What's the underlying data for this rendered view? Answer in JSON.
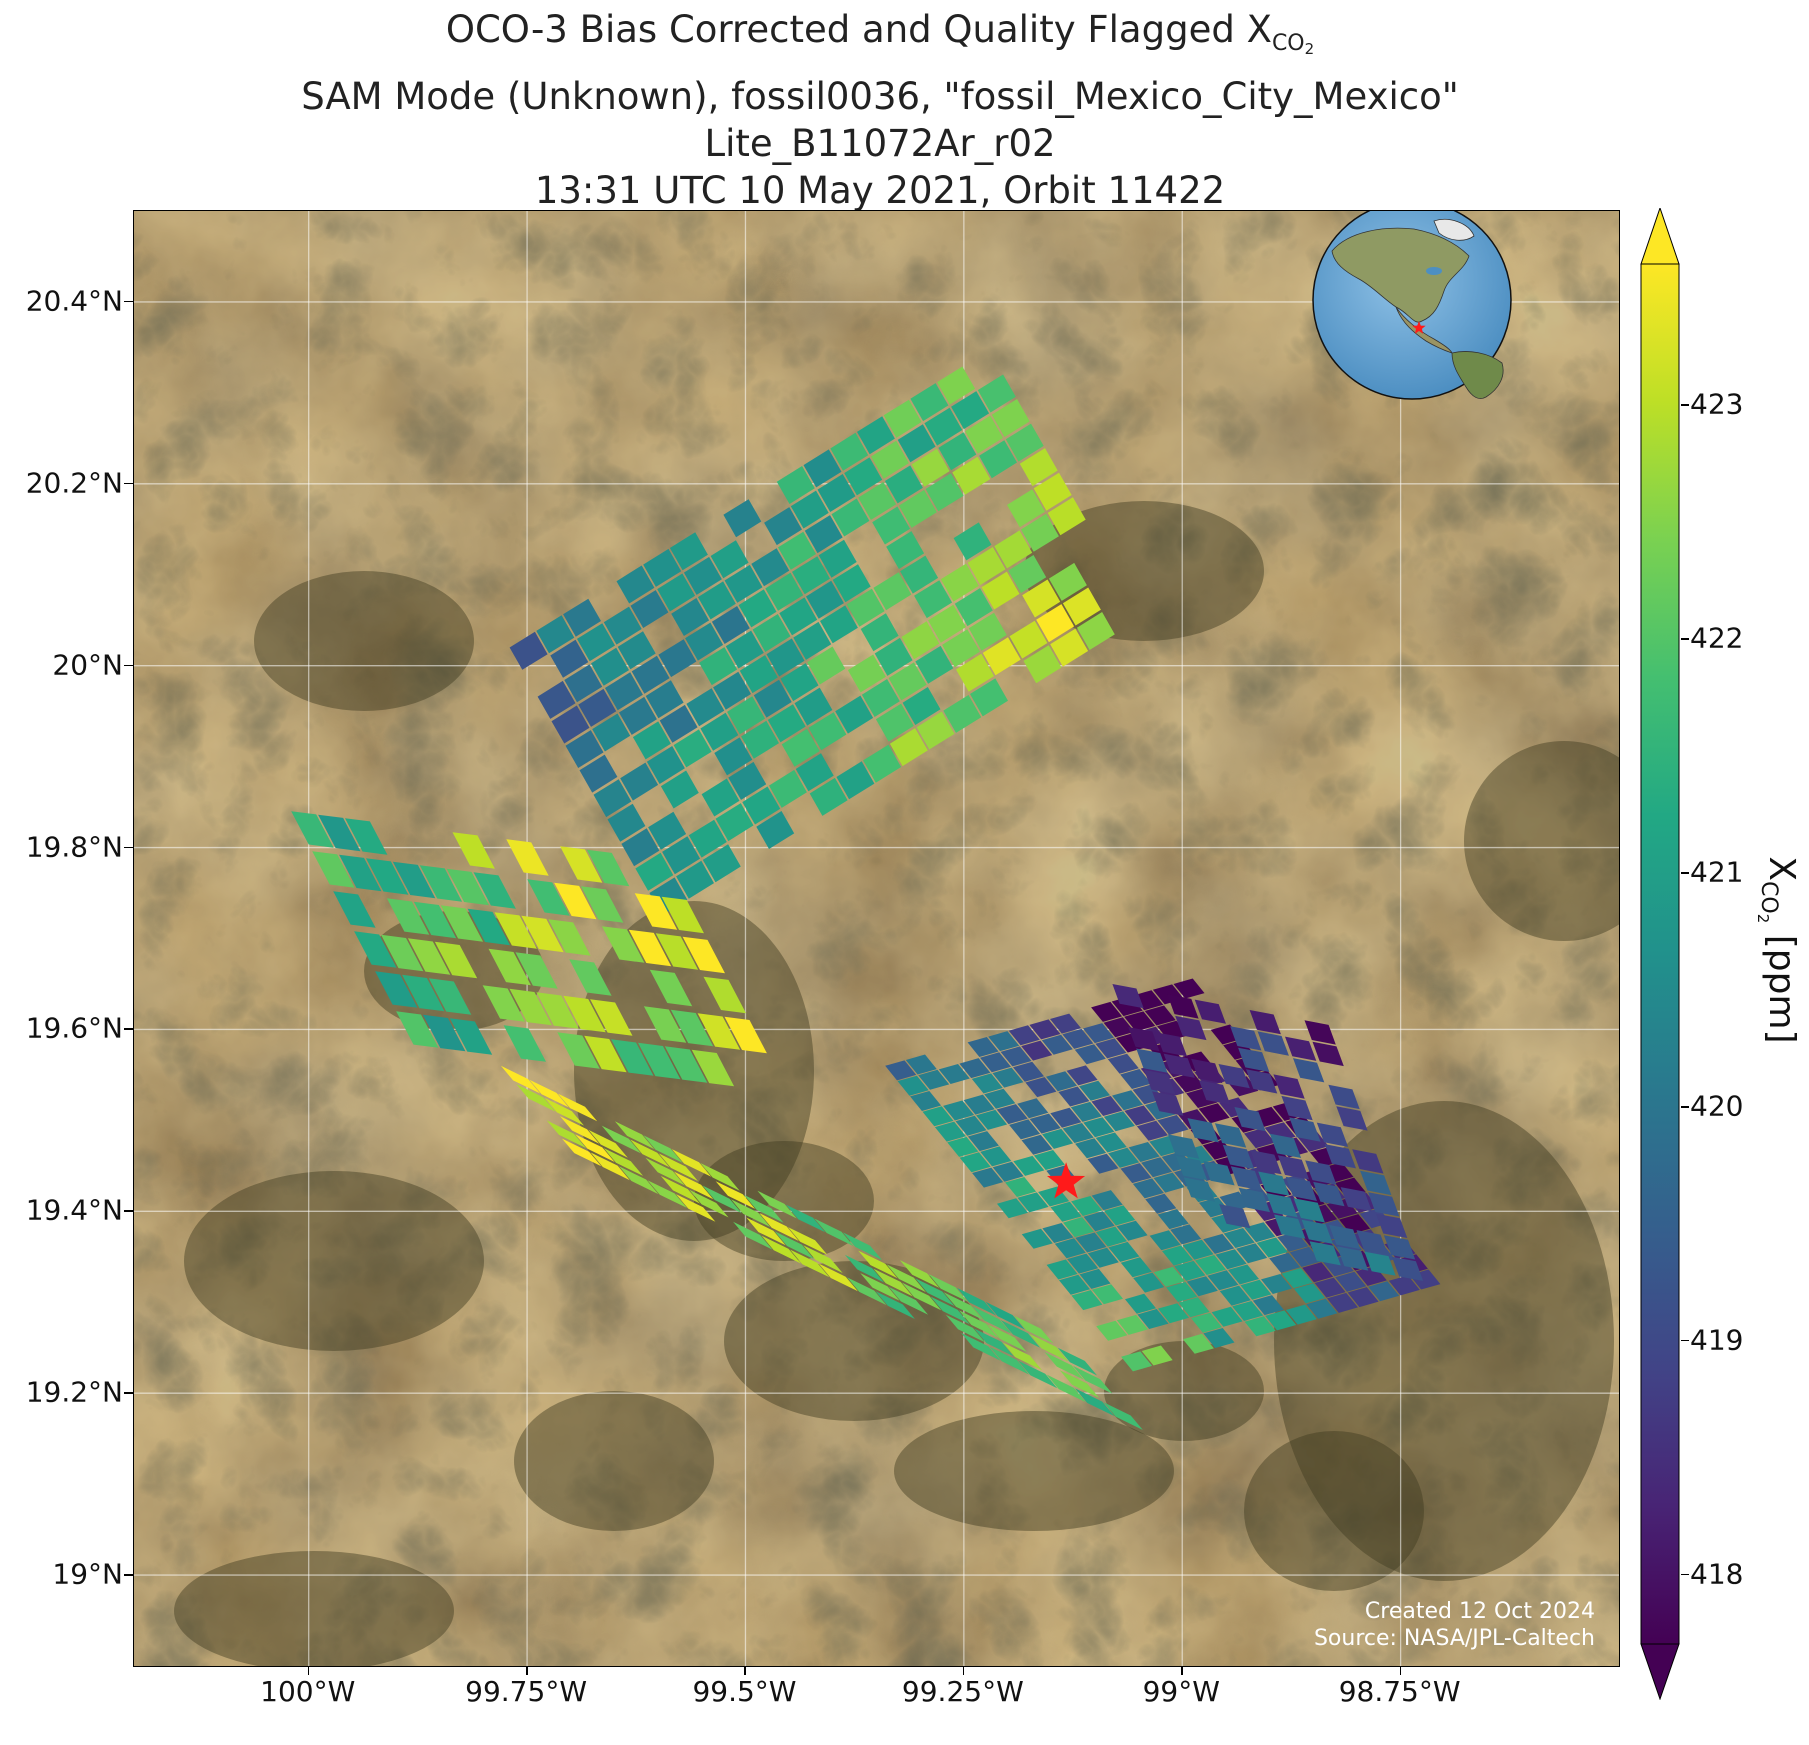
{
  "title": {
    "line1_prefix": "OCO-3 Bias Corrected and Quality Flagged X",
    "line1_sub": "CO",
    "line1_subsub": "2",
    "line2": "SAM Mode (Unknown), fossil0036, \"fossil_Mexico_City_Mexico\"",
    "line3": "Lite_B11072Ar_r02",
    "line4": "13:31 UTC 10 May 2021, Orbit 11422"
  },
  "map": {
    "lon_range": [
      -100.2,
      -98.5
    ],
    "lat_range": [
      18.9,
      20.5
    ],
    "lat_ticks": [
      {
        "value": 19.0,
        "label": "19°N"
      },
      {
        "value": 19.2,
        "label": "19.2°N"
      },
      {
        "value": 19.4,
        "label": "19.4°N"
      },
      {
        "value": 19.6,
        "label": "19.6°N"
      },
      {
        "value": 19.8,
        "label": "19.8°N"
      },
      {
        "value": 20.0,
        "label": "20°N"
      },
      {
        "value": 20.2,
        "label": "20.2°N"
      },
      {
        "value": 20.4,
        "label": "20.4°N"
      }
    ],
    "lon_ticks": [
      {
        "value": -100.0,
        "label": "100°W"
      },
      {
        "value": -99.75,
        "label": "99.75°W"
      },
      {
        "value": -99.5,
        "label": "99.5°W"
      },
      {
        "value": -99.25,
        "label": "99.25°W"
      },
      {
        "value": -99.0,
        "label": "99°W"
      },
      {
        "value": -98.75,
        "label": "98.75°W"
      }
    ],
    "target": {
      "name": "fossil_Mexico_City_Mexico",
      "lon": -99.133,
      "lat": 19.432,
      "marker": "red-star"
    },
    "credit_line1": "Created 12 Oct 2024",
    "credit_line2": "Source: NASA/JPL-Caltech",
    "inset_globe": {
      "marker_lon": -99.13,
      "marker_lat": 19.43
    }
  },
  "colorbar": {
    "colormap": "viridis",
    "range": [
      417.7,
      423.6
    ],
    "extend": "both",
    "ticks": [
      418,
      419,
      420,
      421,
      422,
      423
    ],
    "label_prefix": "X",
    "label_sub": "CO",
    "label_subsub": "2",
    "label_suffix": " [ppm]"
  },
  "chart_data": {
    "type": "scatter",
    "note_values": "XCO2 soundings in ppm over Mexico City region",
    "swaths": [
      {
        "name": "north",
        "start": [
          -99.77,
          20.02
        ],
        "along": [
          0.52,
          0.31
        ],
        "across": [
          0.16,
          -0.27
        ],
        "rows": 11,
        "cols": 18,
        "field": "north"
      },
      {
        "name": "west",
        "start": [
          -100.02,
          19.84
        ],
        "along": [
          0.4,
          -0.05
        ],
        "across": [
          0.12,
          -0.22
        ],
        "rows": 6,
        "cols": 14,
        "field": "west"
      },
      {
        "name": "central",
        "start": [
          -99.78,
          19.56
        ],
        "along": [
          0.62,
          -0.29
        ],
        "across": [
          0.07,
          -0.08
        ],
        "rows": 5,
        "cols": 20,
        "field": "central"
      },
      {
        "name": "city",
        "start": [
          -99.34,
          19.56
        ],
        "along": [
          0.27,
          -0.32
        ],
        "across": [
          0.33,
          0.09
        ],
        "rows": 15,
        "cols": 20,
        "field": "city"
      },
      {
        "name": "east",
        "start": [
          -99.08,
          19.65
        ],
        "along": [
          0.1,
          -0.26
        ],
        "across": [
          0.22,
          -0.04
        ],
        "rows": 8,
        "cols": 12,
        "field": "east"
      }
    ]
  }
}
